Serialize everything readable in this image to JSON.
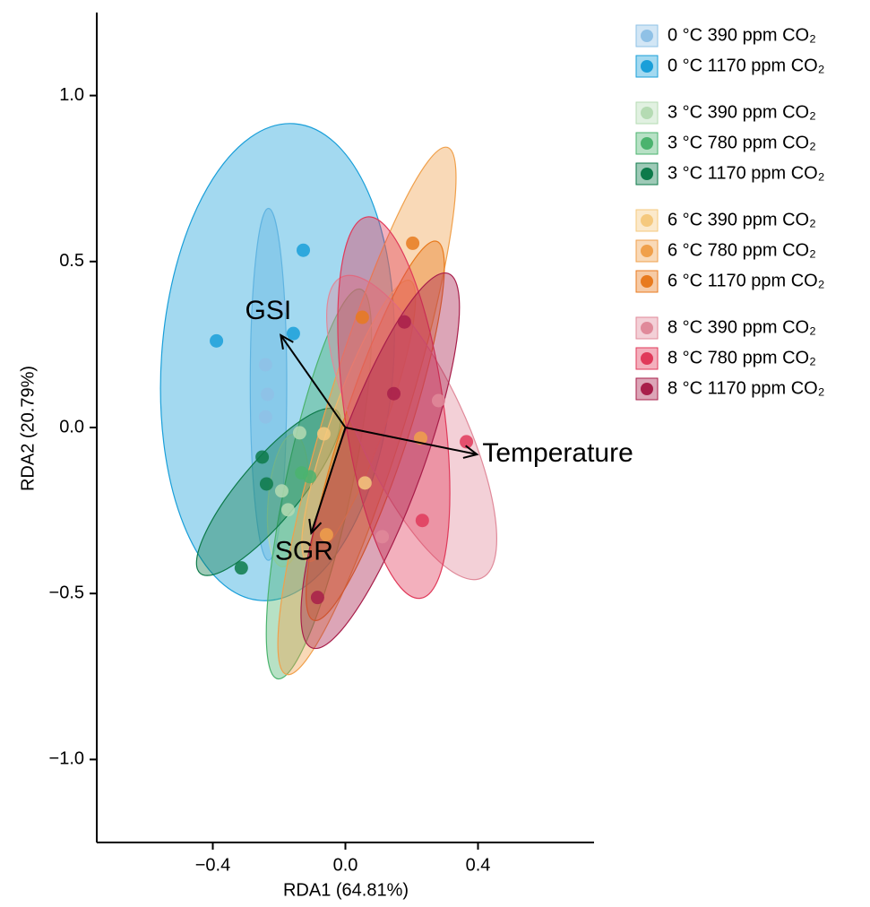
{
  "chart_data": {
    "type": "scatter",
    "x_label": "RDA1 (64.81%)",
    "y_label": "RDA2 (20.79%)",
    "xlim": [
      -0.75,
      0.75
    ],
    "ylim": [
      -1.25,
      1.25
    ],
    "xticks": [
      {
        "value": -0.4,
        "label": "−0.4"
      },
      {
        "value": 0,
        "label": "0.0"
      },
      {
        "value": 0.4,
        "label": "0.4"
      }
    ],
    "yticks": [
      {
        "value": -1,
        "label": "−1.0"
      },
      {
        "value": -0.5,
        "label": "−0.5"
      },
      {
        "value": 0,
        "label": "0.0"
      },
      {
        "value": 0.5,
        "label": "0.5"
      },
      {
        "value": 1,
        "label": "1.0"
      }
    ],
    "series": [
      {
        "name": "0 °C 390 ppm CO₂",
        "color": "#8fc1e6",
        "x": [
          -0.241,
          -0.235,
          -0.241,
          -0.192
        ],
        "y": [
          0.189,
          0.1,
          0.032,
          0.364
        ],
        "ellipse": {
          "cx": -0.232,
          "cy": 0.13,
          "rx": 0.055,
          "ry": 0.53,
          "angle": 0
        }
      },
      {
        "name": "0 °C 1170 ppm CO₂",
        "color": "#1a9fd9",
        "x": [
          -0.127,
          -0.389,
          -0.157
        ],
        "y": [
          0.534,
          0.261,
          0.283
        ],
        "ellipse": {
          "cx": -0.205,
          "cy": 0.197,
          "rx": 0.35,
          "ry": 0.72,
          "angle": -4
        }
      },
      {
        "name": "3 °C 390 ppm CO₂",
        "color": "#b5dbb3",
        "x": [
          -0.138,
          -0.192,
          -0.173
        ],
        "y": [
          -0.016,
          -0.191,
          -0.248
        ],
        "ellipse": {
          "cx": -0.173,
          "cy": -0.22,
          "rx": 0.06,
          "ry": 0.2,
          "angle": -5
        }
      },
      {
        "name": "3 °C 780 ppm CO₂",
        "color": "#4bb36e",
        "x": [
          -0.132,
          -0.108
        ],
        "y": [
          -0.137,
          -0.148
        ],
        "ellipse": {
          "cx": -0.08,
          "cy": -0.17,
          "rx": 0.1,
          "ry": 0.6,
          "angle": -12
        }
      },
      {
        "name": "3 °C 1170 ppm CO₂",
        "color": "#0d7a4a",
        "x": [
          -0.251,
          -0.314,
          -0.238
        ],
        "y": [
          -0.089,
          -0.423,
          -0.17
        ],
        "ellipse": {
          "cx": -0.232,
          "cy": -0.194,
          "rx": 0.09,
          "ry": 0.32,
          "angle": -40
        }
      },
      {
        "name": "6 °C 390 ppm CO₂",
        "color": "#f5c97e",
        "x": [
          -0.065,
          0.059
        ],
        "y": [
          -0.019,
          -0.167
        ],
        "ellipse": {
          "cx": 0.04,
          "cy": 0.02,
          "rx": 0.08,
          "ry": 0.45,
          "angle": -20
        }
      },
      {
        "name": "6 °C 780 ppm CO₂",
        "color": "#f0a04b",
        "x": [
          -0.057,
          0.227
        ],
        "y": [
          -0.323,
          -0.032
        ],
        "ellipse": {
          "cx": 0.065,
          "cy": 0.05,
          "rx": 0.12,
          "ry": 0.83,
          "angle": -17
        }
      },
      {
        "name": "6 °C 1170 ppm CO₂",
        "color": "#e87a1e",
        "x": [
          0.203,
          0.051
        ],
        "y": [
          0.555,
          0.332
        ],
        "ellipse": {
          "cx": 0.09,
          "cy": -0.01,
          "rx": 0.1,
          "ry": 0.6,
          "angle": -18
        }
      },
      {
        "name": "8 °C 390 ppm CO₂",
        "color": "#e08a9a",
        "x": [
          0.111,
          0.281
        ],
        "y": [
          -0.329,
          0.081
        ],
        "ellipse": {
          "cx": 0.2,
          "cy": 0,
          "rx": 0.16,
          "ry": 0.5,
          "angle": 25
        }
      },
      {
        "name": "8 °C 780 ppm CO₂",
        "color": "#e03a5a",
        "x": [
          0.365,
          0.232
        ],
        "y": [
          -0.043,
          -0.28
        ],
        "ellipse": {
          "cx": 0.146,
          "cy": 0.06,
          "rx": 0.15,
          "ry": 0.58,
          "angle": 8
        }
      },
      {
        "name": "8 °C 1170 ppm CO₂",
        "color": "#a81e4a",
        "x": [
          -0.084,
          0.178,
          0.146
        ],
        "y": [
          -0.512,
          0.318,
          0.102
        ],
        "ellipse": {
          "cx": 0.105,
          "cy": -0.1,
          "rx": 0.13,
          "ry": 0.6,
          "angle": -20
        }
      }
    ],
    "vectors": [
      {
        "name": "GSI",
        "x": -0.195,
        "y": 0.278
      },
      {
        "name": "Temperature",
        "x": 0.397,
        "y": -0.081
      },
      {
        "name": "SGR",
        "x": -0.103,
        "y": -0.318
      }
    ]
  }
}
